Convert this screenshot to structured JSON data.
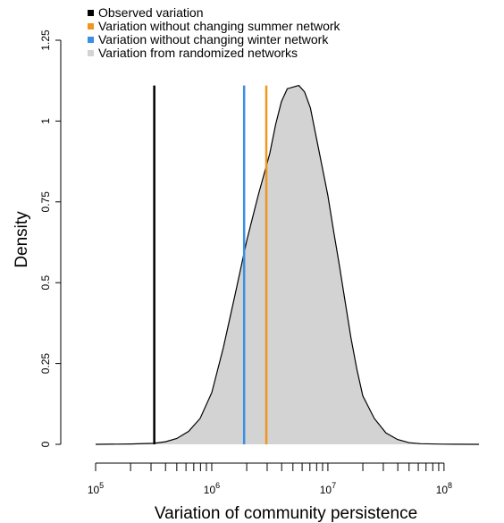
{
  "chart_data": {
    "type": "area",
    "xlabel": "Variation of community persistence",
    "ylabel": "Density",
    "x_scale": "log10",
    "xlim": [
      100000,
      200000000
    ],
    "ylim": [
      0,
      1.25
    ],
    "x_ticks": [
      {
        "value": 100000,
        "base": "10",
        "exp": "5"
      },
      {
        "value": 1000000,
        "base": "10",
        "exp": "6"
      },
      {
        "value": 10000000,
        "base": "10",
        "exp": "7"
      },
      {
        "value": 100000000,
        "base": "10",
        "exp": "8"
      }
    ],
    "y_ticks": [
      {
        "value": 0,
        "label": "0"
      },
      {
        "value": 0.25,
        "label": "0.25"
      },
      {
        "value": 0.5,
        "label": "0.5"
      },
      {
        "value": 0.75,
        "label": "0.75"
      },
      {
        "value": 1,
        "label": "1"
      },
      {
        "value": 1.25,
        "label": "1.25"
      }
    ],
    "legend_position": "top-left",
    "legend": [
      {
        "label": "Observed variation",
        "color": "#000000"
      },
      {
        "label": "Variation without changing summer network",
        "color": "#f0961e"
      },
      {
        "label": "Variation without changing winter network",
        "color": "#3b8fe3"
      },
      {
        "label": "Variation from randomized networks",
        "color": "#d3d3d3"
      }
    ],
    "vlines": [
      {
        "x": 320000,
        "color": "#000000",
        "height": 1.11
      },
      {
        "x": 2950000,
        "color": "#f0961e",
        "height": 1.11
      },
      {
        "x": 1900000,
        "color": "#3b8fe3",
        "height": 1.11
      }
    ],
    "density": {
      "fill": "#d3d3d3",
      "stroke": "#000000",
      "points": [
        [
          100000,
          0.0
        ],
        [
          200000,
          0.001
        ],
        [
          316000,
          0.003
        ],
        [
          400000,
          0.008
        ],
        [
          500000,
          0.018
        ],
        [
          631000,
          0.04
        ],
        [
          794000,
          0.08
        ],
        [
          1000000,
          0.16
        ],
        [
          1260000,
          0.3
        ],
        [
          1580000,
          0.46
        ],
        [
          2000000,
          0.63
        ],
        [
          2510000,
          0.77
        ],
        [
          3160000,
          0.9
        ],
        [
          3550000,
          0.99
        ],
        [
          3980000,
          1.06
        ],
        [
          4470000,
          1.1
        ],
        [
          5010000,
          1.105
        ],
        [
          5620000,
          1.11
        ],
        [
          6310000,
          1.09
        ],
        [
          7080000,
          1.04
        ],
        [
          7940000,
          0.95
        ],
        [
          8910000,
          0.86
        ],
        [
          10000000,
          0.77
        ],
        [
          11200000,
          0.66
        ],
        [
          12600000,
          0.55
        ],
        [
          14100000,
          0.44
        ],
        [
          15800000,
          0.33
        ],
        [
          17800000,
          0.23
        ],
        [
          20000000,
          0.15
        ],
        [
          25100000,
          0.08
        ],
        [
          31600000,
          0.035
        ],
        [
          39800000,
          0.015
        ],
        [
          50100000,
          0.005
        ],
        [
          63100000,
          0.002
        ],
        [
          100000000,
          0.0005
        ],
        [
          200000000,
          0.0
        ]
      ]
    }
  }
}
